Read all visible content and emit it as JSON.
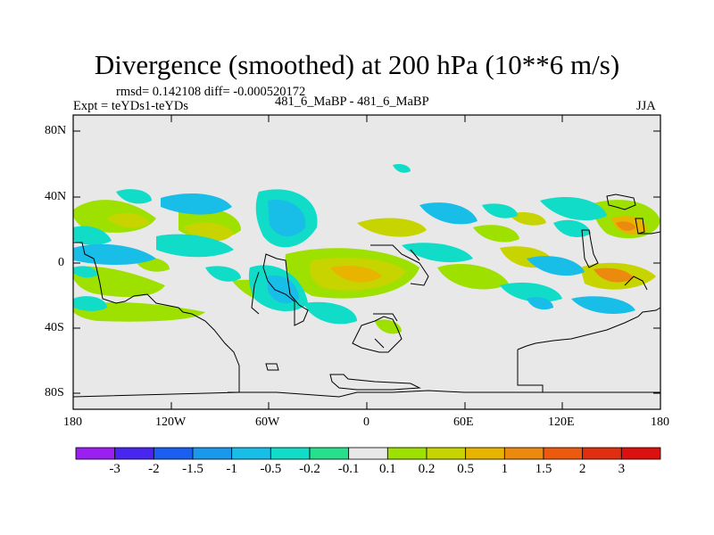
{
  "title": "Divergence (smoothed) at 200 hPa (10**6 m/s)",
  "stats": "rmsd= 0.142108 diff= -0.000520172",
  "experiment": "Expt = teYDs1-teYDs",
  "case_label": "481_6_MaBP - 481_6_MaBP",
  "season": "JJA",
  "lat_ticks": [
    "80N",
    "40N",
    "0",
    "40S",
    "80S"
  ],
  "lon_ticks": [
    "180",
    "120W",
    "60W",
    "0",
    "60E",
    "120E",
    "180"
  ],
  "colorbar": {
    "labels": [
      "-3",
      "-2",
      "-1.5",
      "-1",
      "-0.5",
      "-0.2",
      "-0.1",
      "0.1",
      "0.2",
      "0.5",
      "1",
      "1.5",
      "2",
      "3"
    ],
    "colors": [
      "#9a1ff0",
      "#4826f0",
      "#1a5ff0",
      "#1a98ec",
      "#18bde8",
      "#10dcc8",
      "#28e08c",
      "#e8e8e8",
      "#9ee000",
      "#c8d400",
      "#e8b400",
      "#ec8a10",
      "#ec5a10",
      "#e02e10",
      "#dd1010"
    ]
  }
}
